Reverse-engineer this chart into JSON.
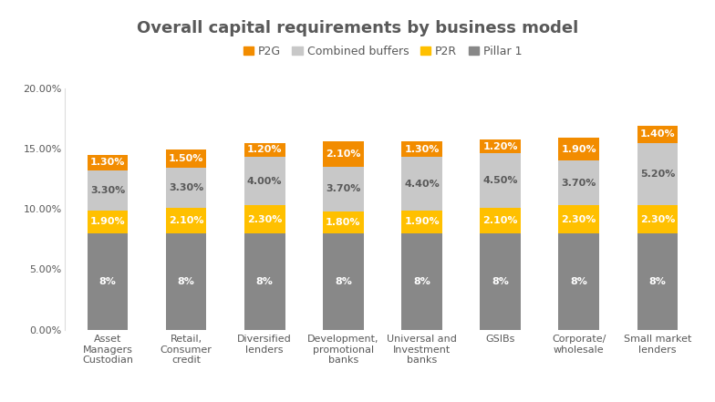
{
  "title": "Overall capital requirements by business model",
  "categories": [
    "Asset\nManagers\nCustodian",
    "Retail,\nConsumer\ncredit",
    "Diversified\nlenders",
    "Development,\npromotional\nbanks",
    "Universal and\nInvestment\nbanks",
    "GSIBs",
    "Corporate/\nwholesale",
    "Small market\nlenders"
  ],
  "pillar1": [
    8,
    8,
    8,
    8,
    8,
    8,
    8,
    8
  ],
  "p2r": [
    1.9,
    2.1,
    2.3,
    1.8,
    1.9,
    2.1,
    2.3,
    2.3
  ],
  "combined_buffers": [
    3.3,
    3.3,
    4.0,
    3.7,
    4.4,
    4.5,
    3.7,
    5.2
  ],
  "p2g": [
    1.3,
    1.5,
    1.2,
    2.1,
    1.3,
    1.2,
    1.9,
    1.4
  ],
  "pillar1_label": [
    "8%",
    "8%",
    "8%",
    "8%",
    "8%",
    "8%",
    "8%",
    "8%"
  ],
  "p2r_labels": [
    "1.90%",
    "2.10%",
    "2.30%",
    "1.80%",
    "1.90%",
    "2.10%",
    "2.30%",
    "2.30%"
  ],
  "combined_labels": [
    "3.30%",
    "3.30%",
    "4.00%",
    "3.70%",
    "4.40%",
    "4.50%",
    "3.70%",
    "5.20%"
  ],
  "p2g_labels": [
    "1.30%",
    "1.50%",
    "1.20%",
    "2.10%",
    "1.30%",
    "1.20%",
    "1.90%",
    "1.40%"
  ],
  "color_pillar1": "#888888",
  "color_p2r": "#FFC000",
  "color_combined": "#C8C8C8",
  "color_p2g": "#F28C00",
  "ytick_labels": [
    "0.00%",
    "5.00%",
    "10.00%",
    "15.00%",
    "20.00%"
  ],
  "background_color": "#FFFFFF",
  "title_fontsize": 13,
  "label_fontsize": 8,
  "tick_fontsize": 8,
  "legend_fontsize": 9,
  "title_color": "#595959",
  "label_color_white": "#FFFFFF",
  "label_color_dark": "#595959"
}
